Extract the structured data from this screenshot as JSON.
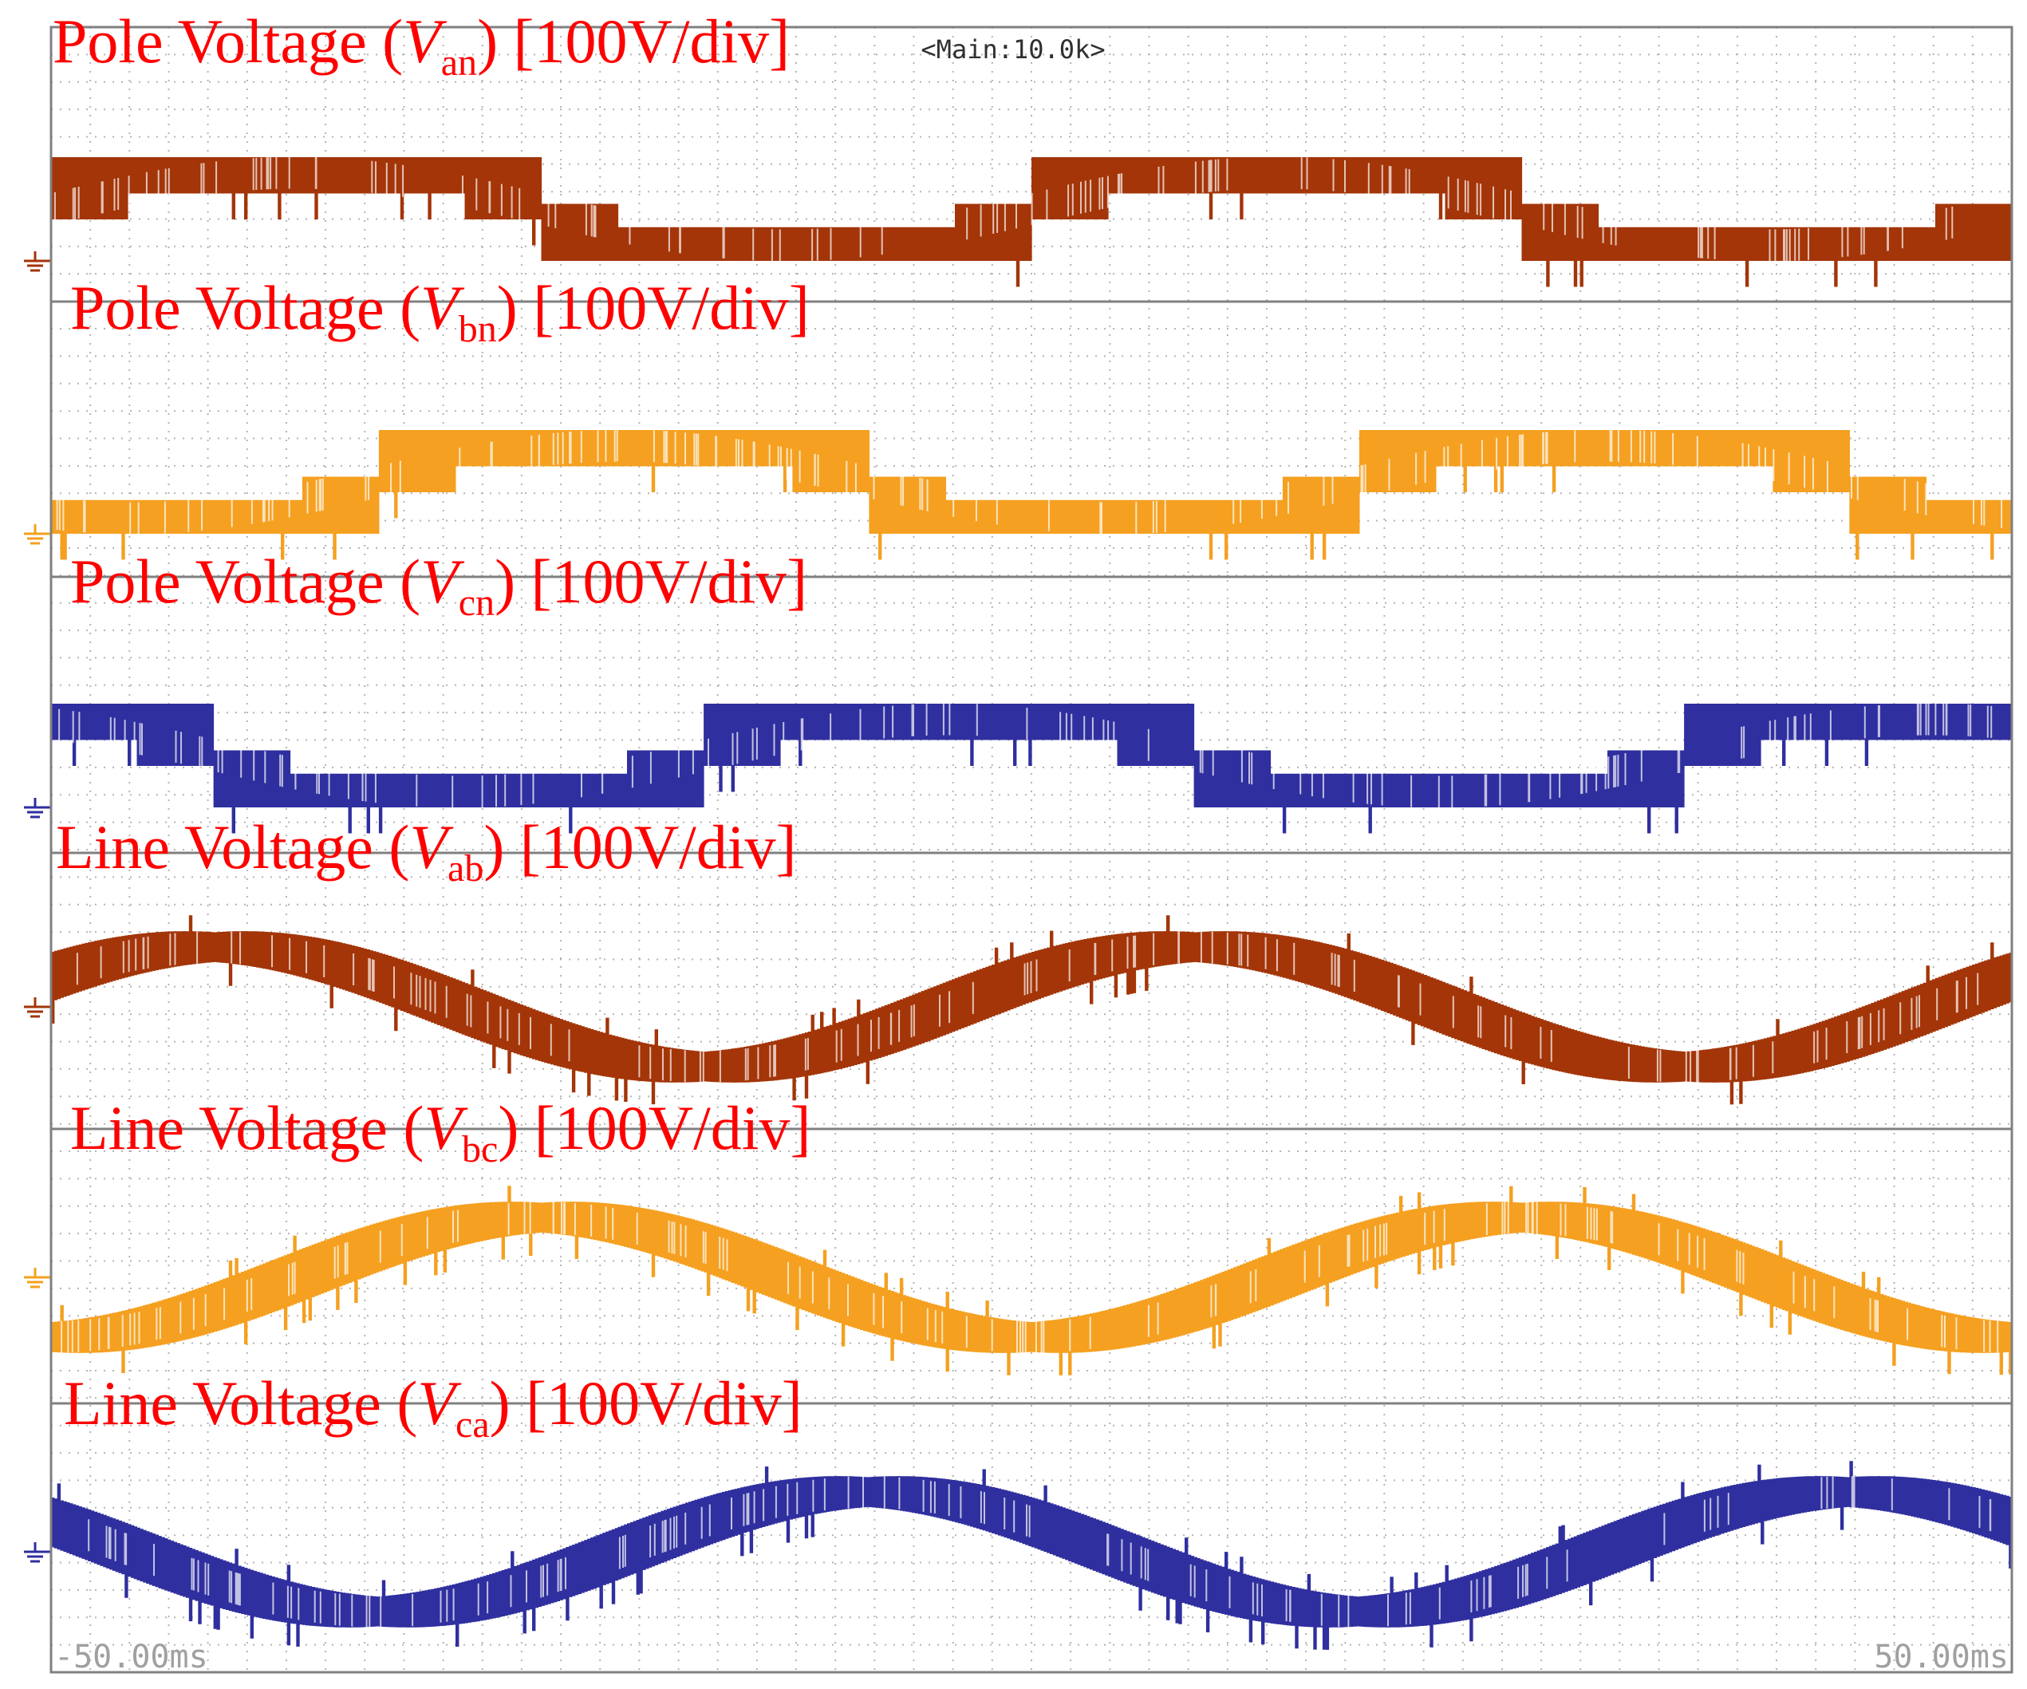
{
  "screen": {
    "header": "<Main:10.0k>",
    "time_start": "-50.00ms",
    "time_end": "50.00ms"
  },
  "colors": {
    "background": "#ffffff",
    "frame": "#808080",
    "grid_dot": "#b4b4b4",
    "label": "#ff0000",
    "brown": "#a33508",
    "orange": "#f5a020",
    "blue": "#2f2f9f"
  },
  "chart_data": [
    {
      "type": "line",
      "label_pre": "Pole Voltage (",
      "label_var": "V",
      "label_sub": "an",
      "label_post": ") [100V/div]",
      "color": "#a33508",
      "waveform": "pole",
      "phase_deg": 0,
      "x_unit": "ms",
      "xlim": [
        -50,
        50
      ],
      "frequency_hz": 20,
      "levels_div": [
        -0.8,
        0,
        0.8
      ],
      "y_scale": "100V/div"
    },
    {
      "type": "line",
      "label_pre": "Pole Voltage (",
      "label_var": "V",
      "label_sub": "bn",
      "label_post": ") [100V/div]",
      "color": "#f5a020",
      "waveform": "pole",
      "phase_deg": -120,
      "x_unit": "ms",
      "xlim": [
        -50,
        50
      ],
      "frequency_hz": 20,
      "levels_div": [
        -0.8,
        0,
        0.8
      ],
      "y_scale": "100V/div"
    },
    {
      "type": "line",
      "label_pre": "Pole Voltage (",
      "label_var": "V",
      "label_sub": "cn",
      "label_post": ") [100V/div]",
      "color": "#2f2f9f",
      "waveform": "pole",
      "phase_deg": 120,
      "x_unit": "ms",
      "xlim": [
        -50,
        50
      ],
      "frequency_hz": 20,
      "levels_div": [
        -0.8,
        0,
        0.8
      ],
      "y_scale": "100V/div"
    },
    {
      "type": "line",
      "label_pre": "Line Voltage (",
      "label_var": "V",
      "label_sub": "ab",
      "label_post": ") [100V/div]",
      "color": "#a33508",
      "waveform": "line",
      "phase_deg": 30,
      "x_unit": "ms",
      "xlim": [
        -50,
        50
      ],
      "frequency_hz": 20,
      "levels_div": [
        -1.6,
        -0.8,
        0,
        0.8,
        1.6
      ],
      "y_scale": "100V/div"
    },
    {
      "type": "line",
      "label_pre": "Line Voltage (",
      "label_var": "V",
      "label_sub": "bc",
      "label_post": ") [100V/div]",
      "color": "#f5a020",
      "waveform": "line",
      "phase_deg": -90,
      "x_unit": "ms",
      "xlim": [
        -50,
        50
      ],
      "frequency_hz": 20,
      "levels_div": [
        -1.6,
        -0.8,
        0,
        0.8,
        1.6
      ],
      "y_scale": "100V/div"
    },
    {
      "type": "line",
      "label_pre": "Line Voltage (",
      "label_var": "V",
      "label_sub": "ca",
      "label_post": ") [100V/div]",
      "color": "#2f2f9f",
      "waveform": "line",
      "phase_deg": 150,
      "x_unit": "ms",
      "xlim": [
        -50,
        50
      ],
      "frequency_hz": 20,
      "levels_div": [
        -1.6,
        -0.8,
        0,
        0.8,
        1.6
      ],
      "y_scale": "100V/div"
    }
  ]
}
